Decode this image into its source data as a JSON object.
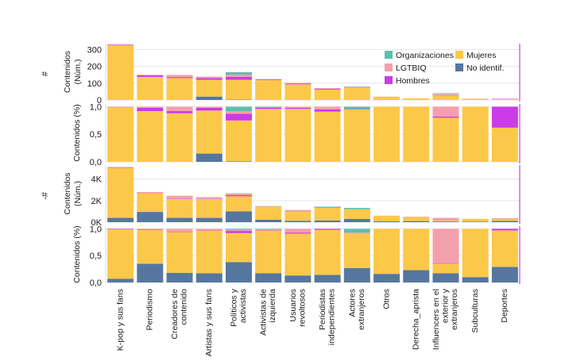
{
  "categories": [
    "K-pop y sus fans",
    "Periodismo",
    "Creadores de contenido",
    "Artistas y sus fans",
    "Políticos y activistas",
    "Activistas de izquierda",
    "Usuarios revoltosos",
    "Periodistas independientes",
    "Actores extranjeros",
    "Otros",
    "Derecha_aprista",
    "Influencers en el exterior y extranjeros",
    "Subculturas",
    "Deportes"
  ],
  "category_lines": [
    [
      "K-pop y sus fans"
    ],
    [
      "Periodismo"
    ],
    [
      "Creadores de",
      "contenido"
    ],
    [
      "Artistas y sus fans"
    ],
    [
      "Políticos y",
      "activistas"
    ],
    [
      "Activistas de",
      "izquierda"
    ],
    [
      "Usuarios",
      "revoltosos"
    ],
    [
      "Periodistas",
      "independientes"
    ],
    [
      "Actores",
      "extranjeros"
    ],
    [
      "Otros"
    ],
    [
      "Derecha_aprista"
    ],
    [
      "Influencers en el",
      "exterior y",
      "extranjeros"
    ],
    [
      "Subculturas"
    ],
    [
      "Deportes"
    ]
  ],
  "legend": [
    {
      "key": "org",
      "label": "Organizaciones",
      "color": "#5bbfb0"
    },
    {
      "key": "muj",
      "label": "Mujeres",
      "color": "#fcc84a"
    },
    {
      "key": "lgt",
      "label": "LGTBIQ",
      "color": "#f4a0ac"
    },
    {
      "key": "nid",
      "label": "No identif.",
      "color": "#55779f"
    },
    {
      "key": "hom",
      "label": "Hombres",
      "color": "#cc3be8"
    }
  ],
  "chart_data": [
    {
      "type": "bar",
      "stacked": true,
      "row_label": "#",
      "ylabel": "Contenidos (Núm.)",
      "yticks": [
        "0",
        "100",
        "200",
        "300"
      ],
      "ytick_values": [
        0,
        100,
        200,
        300
      ],
      "ylim": [
        0,
        335
      ],
      "series": [
        {
          "name": "No identif.",
          "key": "nid",
          "values": [
            0,
            0,
            0,
            20,
            2,
            0,
            0,
            0,
            0,
            0,
            0,
            0,
            0,
            0
          ]
        },
        {
          "name": "Mujeres",
          "key": "muj",
          "values": [
            325,
            137,
            130,
            100,
            118,
            118,
            93,
            62,
            75,
            20,
            10,
            27,
            8,
            5
          ]
        },
        {
          "name": "Hombres",
          "key": "hom",
          "values": [
            3,
            9,
            6,
            10,
            17,
            4,
            4,
            5,
            1,
            0,
            0,
            2,
            0,
            2
          ]
        },
        {
          "name": "LGTBIQ",
          "key": "lgt",
          "values": [
            2,
            4,
            13,
            9,
            14,
            2,
            5,
            4,
            1,
            0,
            0,
            8,
            0,
            0
          ]
        },
        {
          "name": "Organizaciones",
          "key": "org",
          "values": [
            0,
            0,
            0,
            0,
            14,
            0,
            0,
            0,
            3,
            0,
            0,
            3,
            0,
            0
          ]
        }
      ]
    },
    {
      "type": "bar",
      "stacked": true,
      "ylabel": "Contenidos (%)",
      "yticks": [
        "0,0",
        "0,5",
        "1,0"
      ],
      "ytick_values": [
        0,
        0.5,
        1
      ],
      "ylim": [
        0,
        1.05
      ],
      "series": [
        {
          "name": "No identif.",
          "key": "nid",
          "values": [
            0,
            0,
            0,
            0.15,
            0.01,
            0,
            0,
            0,
            0,
            0,
            0,
            0,
            0,
            0
          ]
        },
        {
          "name": "Mujeres",
          "key": "muj",
          "values": [
            0.99,
            0.92,
            0.88,
            0.78,
            0.74,
            0.96,
            0.96,
            0.91,
            0.95,
            1,
            1,
            0.8,
            1,
            0.62
          ]
        },
        {
          "name": "Hombres",
          "key": "hom",
          "values": [
            0.005,
            0.06,
            0.04,
            0.05,
            0.12,
            0.02,
            0.02,
            0.04,
            0.01,
            0,
            0,
            0.02,
            0,
            0.38
          ]
        },
        {
          "name": "LGTBIQ",
          "key": "lgt",
          "values": [
            0.005,
            0.02,
            0.08,
            0.02,
            0.05,
            0,
            0.02,
            0.05,
            0,
            0,
            0,
            0.18,
            0,
            0
          ]
        },
        {
          "name": "Organizaciones",
          "key": "org",
          "values": [
            0,
            0,
            0,
            0,
            0.08,
            0.02,
            0,
            0,
            0.04,
            0,
            0,
            0,
            0,
            0
          ]
        }
      ]
    },
    {
      "type": "bar",
      "stacked": true,
      "row_label": "-#",
      "ylabel": "Contenidos (Núm.)",
      "yticks": [
        "0K",
        "2K",
        "4K"
      ],
      "ytick_values": [
        0,
        2000,
        4000
      ],
      "ylim": [
        0,
        5300
      ],
      "series": [
        {
          "name": "No identif.",
          "key": "nid",
          "values": [
            400,
            950,
            400,
            400,
            1000,
            230,
            130,
            150,
            300,
            80,
            100,
            60,
            40,
            120
          ]
        },
        {
          "name": "Mujeres",
          "key": "muj",
          "values": [
            4650,
            1750,
            1750,
            1750,
            1400,
            1220,
            880,
            1180,
            900,
            500,
            410,
            110,
            270,
            230
          ]
        },
        {
          "name": "Hombres",
          "key": "hom",
          "values": [
            50,
            20,
            40,
            20,
            100,
            10,
            20,
            40,
            0,
            0,
            0,
            30,
            0,
            20
          ]
        },
        {
          "name": "LGTBIQ",
          "key": "lgt",
          "values": [
            0,
            80,
            260,
            150,
            160,
            20,
            100,
            30,
            0,
            20,
            0,
            200,
            0,
            0
          ]
        },
        {
          "name": "Organizaciones",
          "key": "org",
          "values": [
            0,
            0,
            0,
            0,
            20,
            20,
            0,
            40,
            120,
            0,
            0,
            0,
            0,
            0
          ]
        }
      ]
    },
    {
      "type": "bar",
      "stacked": true,
      "ylabel": "Contenidos (%)",
      "yticks": [
        "0,0",
        "0,5",
        "1,0"
      ],
      "ytick_values": [
        0,
        0.5,
        1
      ],
      "ylim": [
        0,
        1.05
      ],
      "series": [
        {
          "name": "No identif.",
          "key": "nid",
          "values": [
            0.07,
            0.35,
            0.18,
            0.17,
            0.38,
            0.17,
            0.13,
            0.14,
            0.27,
            0.16,
            0.23,
            0.17,
            0.1,
            0.29
          ]
        },
        {
          "name": "Mujeres",
          "key": "muj",
          "values": [
            0.92,
            0.63,
            0.76,
            0.8,
            0.54,
            0.8,
            0.78,
            0.84,
            0.64,
            0.84,
            0.77,
            0.18,
            0.9,
            0.68
          ]
        },
        {
          "name": "Hombres",
          "key": "hom",
          "values": [
            0.01,
            0.01,
            0.01,
            0.01,
            0.04,
            0.01,
            0.02,
            0.02,
            0,
            0,
            0,
            0.01,
            0,
            0.03
          ]
        },
        {
          "name": "LGTBIQ",
          "key": "lgt",
          "values": [
            0,
            0.01,
            0.05,
            0.02,
            0.02,
            0.01,
            0.07,
            0,
            0.02,
            0,
            0,
            0.64,
            0,
            0
          ]
        },
        {
          "name": "Organizaciones",
          "key": "org",
          "values": [
            0,
            0,
            0,
            0,
            0.02,
            0.01,
            0,
            0,
            0.07,
            0,
            0,
            0,
            0,
            0
          ]
        }
      ]
    }
  ]
}
